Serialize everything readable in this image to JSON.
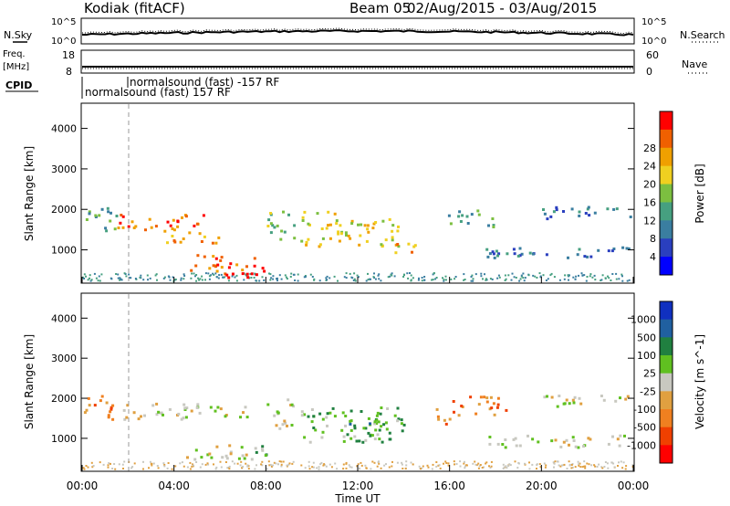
{
  "header": {
    "station": "Kodiak (fitACF)",
    "beam_label": "Beam 05",
    "date_range": "02/Aug/2015 - 03/Aug/2015"
  },
  "noise_panel": {
    "left_label": "N.Sky",
    "right_label": "N.Search",
    "ticks_top": "10^5",
    "ticks_bottom": "10^0"
  },
  "freq_panel": {
    "left_label_1": "Freq.",
    "left_label_2": "[MHz]",
    "right_label": "Nave",
    "left_ticks": [
      "18",
      "8"
    ],
    "right_ticks": [
      "60",
      "0"
    ]
  },
  "cpid": {
    "label": "CPID",
    "modes": [
      "normalsound (fast) -157 RF",
      "normalsound (fast) 157 RF"
    ]
  },
  "colors": {
    "power": [
      "#0000ff",
      "#2a3fbf",
      "#3a7ea0",
      "#46a080",
      "#7cbf40",
      "#f0d020",
      "#f0a000",
      "#f06000",
      "#ff0000"
    ],
    "velocity": [
      "#1030c0",
      "#2060a0",
      "#208040",
      "#60c020",
      "#c8c8c0",
      "#e0a040",
      "#f08020",
      "#f04000",
      "#ff0000"
    ],
    "ground_gray": "#c8c8c0"
  },
  "chart_data": [
    {
      "type": "heatmap",
      "title": "Power",
      "ylabel": "Slant Range [km]",
      "xlabel": "",
      "ylim": [
        200,
        4600
      ],
      "xlim": [
        "00:00",
        "24:00"
      ],
      "y_ticks": [
        1000,
        2000,
        3000,
        4000
      ],
      "colorbar": {
        "label": "Power [dB]",
        "ticks": [
          4,
          8,
          12,
          16,
          20,
          24,
          28
        ]
      },
      "echo_regions": [
        {
          "t": [
            0.0,
            1.5
          ],
          "r": [
            1500,
            2100
          ],
          "level": 3
        },
        {
          "t": [
            1.5,
            5.5
          ],
          "r": [
            1500,
            1900
          ],
          "level": 7
        },
        {
          "t": [
            3.5,
            6.0
          ],
          "r": [
            1200,
            1550
          ],
          "level": 6
        },
        {
          "t": [
            4.5,
            7.5
          ],
          "r": [
            500,
            900
          ],
          "level": 7
        },
        {
          "t": [
            6.0,
            8.0
          ],
          "r": [
            300,
            700
          ],
          "level": 8
        },
        {
          "t": [
            8.0,
            9.2
          ],
          "r": [
            1200,
            2000
          ],
          "level": 4
        },
        {
          "t": [
            9.5,
            11.5
          ],
          "r": [
            1100,
            2000
          ],
          "level": 5
        },
        {
          "t": [
            11.5,
            14.0
          ],
          "r": [
            1100,
            1800
          ],
          "level": 5
        },
        {
          "t": [
            13.5,
            14.6
          ],
          "r": [
            800,
            1200
          ],
          "level": 6
        },
        {
          "t": [
            15.8,
            18.0
          ],
          "r": [
            1600,
            2000
          ],
          "level": 3
        },
        {
          "t": [
            17.5,
            24.0
          ],
          "r": [
            800,
            1100
          ],
          "level": 2
        },
        {
          "t": [
            20.0,
            24.0
          ],
          "r": [
            1800,
            2100
          ],
          "level": 2
        }
      ]
    },
    {
      "type": "heatmap",
      "title": "Velocity",
      "ylabel": "Slant Range [km]",
      "xlabel": "Time UT",
      "ylim": [
        200,
        4600
      ],
      "xlim": [
        "00:00",
        "24:00"
      ],
      "y_ticks": [
        1000,
        2000,
        3000,
        4000
      ],
      "x_tick_labels": [
        "00:00",
        "04:00",
        "08:00",
        "12:00",
        "16:00",
        "20:00",
        "00:00"
      ],
      "colorbar": {
        "label": "Velocity [m s^-1]",
        "ticks": [
          1000,
          500,
          100,
          25,
          -25,
          -100,
          -500,
          -1000
        ]
      },
      "echo_regions": [
        {
          "t": [
            0.0,
            1.5
          ],
          "r": [
            1500,
            2100
          ],
          "level": 6
        },
        {
          "t": [
            1.5,
            7.5
          ],
          "r": [
            1500,
            1900
          ],
          "level": 4
        },
        {
          "t": [
            4.5,
            7.5
          ],
          "r": [
            500,
            900
          ],
          "level": 4
        },
        {
          "t": [
            7.0,
            8.0
          ],
          "r": [
            500,
            900
          ],
          "level": 3
        },
        {
          "t": [
            8.0,
            9.2
          ],
          "r": [
            1200,
            2000
          ],
          "level": 4
        },
        {
          "t": [
            9.5,
            14.0
          ],
          "r": [
            900,
            1800
          ],
          "level": 3
        },
        {
          "t": [
            11.5,
            14.0
          ],
          "r": [
            1100,
            1500
          ],
          "level": 2
        },
        {
          "t": [
            15.3,
            16.0
          ],
          "r": [
            1300,
            1800
          ],
          "level": 6
        },
        {
          "t": [
            16.0,
            18.5
          ],
          "r": [
            1600,
            2100
          ],
          "level": 6
        },
        {
          "t": [
            17.5,
            24.0
          ],
          "r": [
            800,
            1100
          ],
          "level": 4
        },
        {
          "t": [
            20.0,
            24.0
          ],
          "r": [
            1800,
            2100
          ],
          "level": 4
        }
      ]
    }
  ]
}
